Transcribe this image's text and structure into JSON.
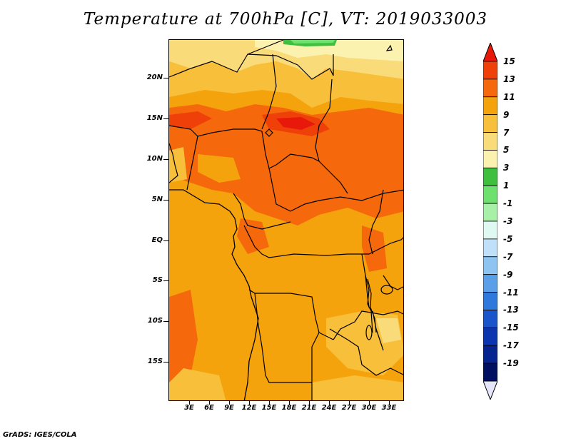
{
  "title": "Temperature at 700hPa [C], VT: 2019033003",
  "footer": "GrADS: IGES/COLA",
  "lat_labels": [
    "20N",
    "15N",
    "10N",
    "5N",
    "EQ",
    "5S",
    "10S",
    "15S"
  ],
  "lon_labels": [
    "3E",
    "6E",
    "9E",
    "12E",
    "15E",
    "18E",
    "21E",
    "24E",
    "27E",
    "30E",
    "33E"
  ],
  "colorbar": {
    "labels": [
      "15",
      "13",
      "11",
      "9",
      "7",
      "5",
      "3",
      "1",
      "-1",
      "-3",
      "-5",
      "-7",
      "-9",
      "-11",
      "-13",
      "-15",
      "-17",
      "-19"
    ],
    "colors": [
      "#e8180a",
      "#f0400a",
      "#f5690c",
      "#f5a30c",
      "#f8bf3a",
      "#fadb7a",
      "#fcf2b0",
      "#3ec03e",
      "#6ee06e",
      "#a8f0a8",
      "#dff8f2",
      "#bfe0f8",
      "#8ec4f2",
      "#5a9fe8",
      "#2f78dc",
      "#1a55cc",
      "#0b36b0",
      "#062490",
      "#001060",
      "#e6e6fa"
    ]
  }
}
